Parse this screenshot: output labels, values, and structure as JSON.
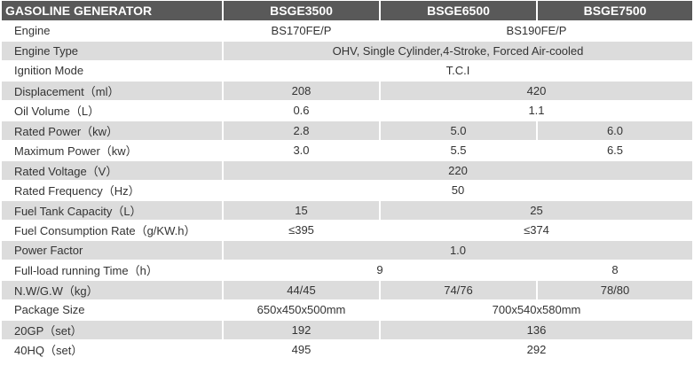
{
  "table": {
    "header": [
      "GASOLINE GENERATOR",
      "BSGE3500",
      "BSGE6500",
      "BSGE7500"
    ],
    "rows": [
      [
        "Engine",
        "BS170FE/P",
        "BS190FE/P"
      ],
      [
        "Engine Type",
        "OHV, Single Cylinder,4-Stroke, Forced Air-cooled"
      ],
      [
        "Ignition Mode",
        "T.C.I"
      ],
      [
        "Displacement（ml）",
        "208",
        "420"
      ],
      [
        "Oil Volume（L）",
        "0.6",
        "1.1"
      ],
      [
        "Rated Power（kw）",
        "2.8",
        "5.0",
        "6.0"
      ],
      [
        "Maximum Power（kw）",
        "3.0",
        "5.5",
        "6.5"
      ],
      [
        "Rated Voltage（V）",
        "220"
      ],
      [
        "Rated Frequency（Hz）",
        "50"
      ],
      [
        "Fuel Tank Capacity（L）",
        "15",
        "25"
      ],
      [
        "Fuel Consumption Rate（g/KW.h）",
        "≤395",
        "≤374"
      ],
      [
        "Power Factor",
        "1.0"
      ],
      [
        "Full-load running Time（h）",
        "9",
        "8"
      ],
      [
        "N.W/G.W（kg）",
        "44/45",
        "74/76",
        "78/80"
      ],
      [
        "Package Size",
        "650x450x500mm",
        "700x540x580mm"
      ],
      [
        "20GP（set）",
        "192",
        "136"
      ],
      [
        "40HQ（set）",
        "495",
        "292"
      ]
    ]
  }
}
